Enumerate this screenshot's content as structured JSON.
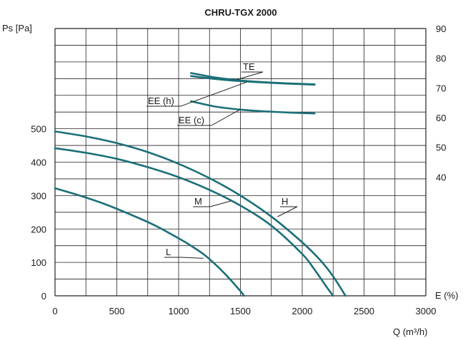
{
  "chart_data": {
    "type": "line",
    "title": "CHRU-TGX 2000",
    "xlabel": "Q (m³/h)",
    "ylabel_left": "Ps [Pa]",
    "ylabel_right": "E (%)",
    "xlim": [
      0,
      3000
    ],
    "ylim_left": [
      0,
      500
    ],
    "ylim_right": [
      0,
      90
    ],
    "x_ticks": [
      "0",
      "500",
      "1000",
      "1500",
      "2000",
      "2500",
      "3000"
    ],
    "y_left_ticks": [
      "0",
      "100",
      "200",
      "300",
      "400",
      "500"
    ],
    "y_right_ticks": [
      "40",
      "50",
      "60",
      "70",
      "80",
      "90"
    ],
    "grid": true,
    "series": [
      {
        "name": "L",
        "axis": "left",
        "color": "#1b6f78",
        "x": [
          0,
          200,
          400,
          600,
          800,
          1000,
          1100,
          1200,
          1300,
          1400,
          1500,
          1530
        ],
        "y": [
          322,
          300,
          275,
          245,
          212,
          172,
          150,
          125,
          93,
          56,
          14,
          0
        ]
      },
      {
        "name": "M",
        "axis": "left",
        "color": "#1b6f78",
        "x": [
          0,
          250,
          500,
          750,
          1000,
          1250,
          1500,
          1750,
          2000,
          2100,
          2200,
          2250
        ],
        "y": [
          442,
          428,
          410,
          385,
          355,
          317,
          270,
          210,
          125,
          78,
          25,
          0
        ]
      },
      {
        "name": "H",
        "axis": "left",
        "color": "#1b6f78",
        "x": [
          0,
          250,
          500,
          750,
          1000,
          1250,
          1500,
          1750,
          2000,
          2150,
          2250,
          2350
        ],
        "y": [
          492,
          477,
          457,
          430,
          395,
          352,
          300,
          237,
          160,
          105,
          58,
          0
        ]
      },
      {
        "name": "TE",
        "axis": "right",
        "color": "#1b6f78",
        "x": [
          1100,
          1300,
          1500,
          1700,
          1900,
          2100
        ],
        "y": [
          75,
          73.5,
          72.5,
          71.9,
          71.5,
          71.2
        ]
      },
      {
        "name": "EE (h)",
        "axis": "right",
        "color": "#1b6f78",
        "x": [
          1100,
          1300,
          1500,
          1700,
          1900,
          2100
        ],
        "y": [
          74,
          73,
          72.3,
          71.8,
          71.4,
          71.1
        ]
      },
      {
        "name": "EE (c)",
        "axis": "right",
        "color": "#1b6f78",
        "x": [
          1100,
          1300,
          1500,
          1700,
          1900,
          2100
        ],
        "y": [
          65.5,
          63.7,
          62.7,
          62.1,
          61.7,
          61.4
        ]
      }
    ]
  }
}
